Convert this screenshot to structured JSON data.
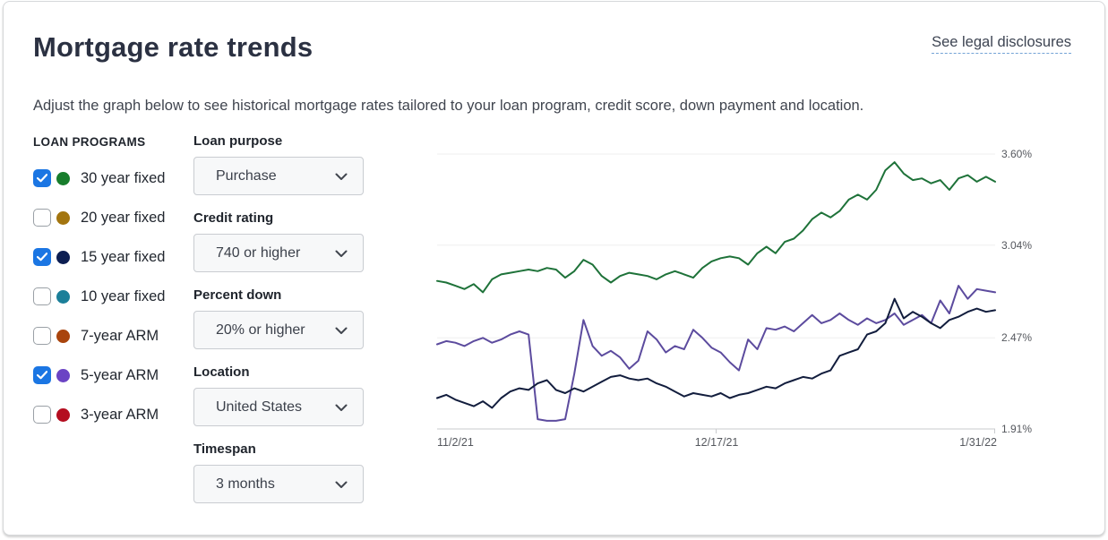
{
  "header": {
    "title": "Mortgage rate trends",
    "disclosures_link": "See legal disclosures"
  },
  "description": "Adjust the graph below to see historical mortgage rates tailored to your loan program, credit score, down payment and location.",
  "accent_colors": {
    "checkbox_checked": "#1b76e3",
    "link_underline": "#73a3d6"
  },
  "loan_programs": {
    "heading": "LOAN PROGRAMS",
    "items": [
      {
        "label": "30 year fixed",
        "checked": true,
        "color": "#177d2c"
      },
      {
        "label": "20 year fixed",
        "checked": false,
        "color": "#a3750f"
      },
      {
        "label": "15 year fixed",
        "checked": true,
        "color": "#0c1e52"
      },
      {
        "label": "10 year fixed",
        "checked": false,
        "color": "#1b7f99"
      },
      {
        "label": "7-year ARM",
        "checked": false,
        "color": "#a9440d"
      },
      {
        "label": "5-year ARM",
        "checked": true,
        "color": "#6b44c4"
      },
      {
        "label": "3-year ARM",
        "checked": false,
        "color": "#b40d1f"
      }
    ]
  },
  "filters": [
    {
      "id": "loan-purpose",
      "label": "Loan purpose",
      "value": "Purchase"
    },
    {
      "id": "credit-rating",
      "label": "Credit rating",
      "value": "740 or higher"
    },
    {
      "id": "percent-down",
      "label": "Percent down",
      "value": "20% or higher"
    },
    {
      "id": "location",
      "label": "Location",
      "value": "United States"
    },
    {
      "id": "timespan",
      "label": "Timespan",
      "value": "3 months"
    }
  ],
  "chart_data": {
    "type": "line",
    "x_tick_labels": [
      "11/2/21",
      "12/17/21",
      "1/31/22"
    ],
    "y_tick_labels": [
      "3.60%",
      "3.04%",
      "2.47%",
      "1.91%"
    ],
    "y_ticks": [
      3.6,
      3.04,
      2.47,
      1.91
    ],
    "ylim": [
      1.91,
      3.6
    ],
    "grid": "horizontal",
    "legend_position": "checkbox-list-left-of-chart",
    "series": [
      {
        "name": "30 year fixed",
        "color": "#1e7239",
        "values": [
          2.82,
          2.81,
          2.79,
          2.77,
          2.8,
          2.75,
          2.83,
          2.86,
          2.87,
          2.88,
          2.89,
          2.88,
          2.9,
          2.89,
          2.84,
          2.88,
          2.95,
          2.92,
          2.85,
          2.81,
          2.85,
          2.87,
          2.86,
          2.85,
          2.83,
          2.86,
          2.88,
          2.86,
          2.84,
          2.9,
          2.94,
          2.96,
          2.97,
          2.96,
          2.92,
          2.99,
          3.03,
          2.99,
          3.06,
          3.08,
          3.13,
          3.2,
          3.24,
          3.21,
          3.25,
          3.32,
          3.35,
          3.32,
          3.38,
          3.5,
          3.55,
          3.48,
          3.44,
          3.45,
          3.42,
          3.44,
          3.38,
          3.45,
          3.47,
          3.43,
          3.46,
          3.43
        ]
      },
      {
        "name": "5-year ARM",
        "color": "#5c4b9e",
        "values": [
          2.43,
          2.45,
          2.44,
          2.42,
          2.45,
          2.47,
          2.44,
          2.46,
          2.49,
          2.51,
          2.49,
          1.97,
          1.96,
          1.96,
          1.97,
          2.25,
          2.58,
          2.42,
          2.36,
          2.39,
          2.35,
          2.28,
          2.33,
          2.51,
          2.46,
          2.38,
          2.42,
          2.4,
          2.52,
          2.47,
          2.41,
          2.38,
          2.32,
          2.27,
          2.46,
          2.4,
          2.53,
          2.52,
          2.54,
          2.51,
          2.56,
          2.61,
          2.56,
          2.58,
          2.62,
          2.58,
          2.55,
          2.59,
          2.56,
          2.58,
          2.62,
          2.55,
          2.58,
          2.61,
          2.56,
          2.7,
          2.62,
          2.79,
          2.71,
          2.77,
          2.76,
          2.75
        ]
      },
      {
        "name": "15 year fixed",
        "color": "#121d3d",
        "values": [
          2.1,
          2.12,
          2.09,
          2.07,
          2.05,
          2.08,
          2.04,
          2.1,
          2.14,
          2.16,
          2.15,
          2.19,
          2.21,
          2.15,
          2.13,
          2.16,
          2.14,
          2.17,
          2.2,
          2.23,
          2.24,
          2.22,
          2.21,
          2.22,
          2.19,
          2.17,
          2.14,
          2.11,
          2.13,
          2.12,
          2.11,
          2.13,
          2.1,
          2.12,
          2.13,
          2.15,
          2.17,
          2.16,
          2.19,
          2.21,
          2.23,
          2.22,
          2.25,
          2.27,
          2.36,
          2.38,
          2.4,
          2.49,
          2.51,
          2.56,
          2.71,
          2.59,
          2.63,
          2.6,
          2.56,
          2.53,
          2.58,
          2.6,
          2.63,
          2.65,
          2.63,
          2.64
        ]
      }
    ]
  }
}
